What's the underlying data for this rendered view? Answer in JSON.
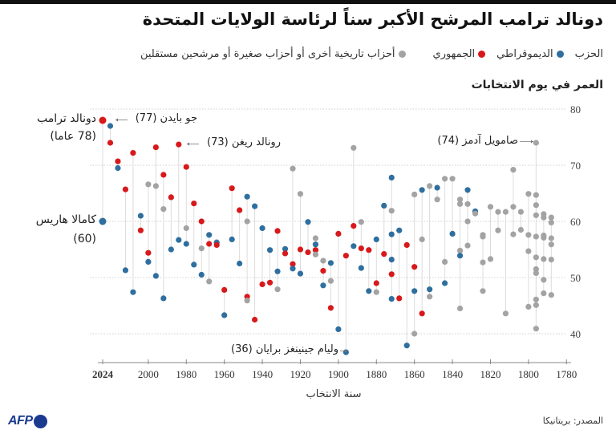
{
  "title": "دونالد ترامب المرشح الأكبر سناً لرئاسة الولايات المتحدة",
  "legend": {
    "label": "الحزب",
    "items": [
      {
        "key": "D",
        "label": "الديموقراطي"
      },
      {
        "key": "R",
        "label": "الجمهوري"
      },
      {
        "key": "O",
        "label": "أحزاب تاريخية أخرى أو أحزاب صغيرة أو مرشحين مستقلين"
      }
    ]
  },
  "source": "المصدر: بريتانيكا",
  "logo": "AFP",
  "chart_data": {
    "type": "scatter",
    "title": "دونالد ترامب المرشح الأكبر سناً لرئاسة الولايات المتحدة",
    "ylabel": "العمر في يوم الانتخابات",
    "xlabel": "سنة الانتخاب",
    "xlim": [
      2024,
      1780
    ],
    "x_reversed": true,
    "ylim": [
      35,
      80
    ],
    "xticks": [
      "2024",
      "2000",
      "1980",
      "1960",
      "1940",
      "1920",
      "1900",
      "1880",
      "1860",
      "1840",
      "1820",
      "1800",
      "1780"
    ],
    "yticks": [
      "80",
      "70",
      "60",
      "50",
      "40"
    ],
    "grid": "horizontal dotted",
    "legend_placement": "top-right",
    "colors": {
      "D": "#2f6f9f",
      "R": "#d7191c",
      "O": "#a3a3a3",
      "stem": "#dcdcdc"
    },
    "elections": [
      {
        "year": 2024,
        "c": [
          [
            78,
            "R"
          ],
          [
            60,
            "D"
          ]
        ]
      },
      {
        "year": 2020,
        "c": [
          [
            77,
            "D"
          ],
          [
            74,
            "R"
          ]
        ]
      },
      {
        "year": 2016,
        "c": [
          [
            70.7,
            "R"
          ],
          [
            69.5,
            "D"
          ]
        ]
      },
      {
        "year": 2012,
        "c": [
          [
            65.7,
            "R"
          ],
          [
            51.3,
            "D"
          ]
        ]
      },
      {
        "year": 2008,
        "c": [
          [
            72.2,
            "R"
          ],
          [
            47.4,
            "D"
          ]
        ]
      },
      {
        "year": 2004,
        "c": [
          [
            61,
            "D"
          ],
          [
            58.4,
            "R"
          ]
        ]
      },
      {
        "year": 2000,
        "c": [
          [
            66.6,
            "O"
          ],
          [
            54.4,
            "R"
          ],
          [
            52.8,
            "D"
          ]
        ]
      },
      {
        "year": 1996,
        "c": [
          [
            73.2,
            "R"
          ],
          [
            66.3,
            "O"
          ],
          [
            50.3,
            "D"
          ]
        ]
      },
      {
        "year": 1992,
        "c": [
          [
            68.3,
            "R"
          ],
          [
            62.2,
            "O"
          ],
          [
            46.3,
            "D"
          ]
        ]
      },
      {
        "year": 1988,
        "c": [
          [
            64.3,
            "R"
          ],
          [
            55,
            "D"
          ]
        ]
      },
      {
        "year": 1984,
        "c": [
          [
            73.7,
            "R"
          ],
          [
            56.7,
            "D"
          ]
        ]
      },
      {
        "year": 1980,
        "c": [
          [
            69.7,
            "R"
          ],
          [
            58.8,
            "O"
          ],
          [
            56,
            "D"
          ]
        ]
      },
      {
        "year": 1976,
        "c": [
          [
            63.2,
            "R"
          ],
          [
            52.3,
            "D"
          ]
        ]
      },
      {
        "year": 1972,
        "c": [
          [
            60,
            "R"
          ],
          [
            55.2,
            "O"
          ],
          [
            50.5,
            "D"
          ]
        ]
      },
      {
        "year": 1968,
        "c": [
          [
            57.6,
            "D"
          ],
          [
            56,
            "R"
          ],
          [
            49.3,
            "O"
          ]
        ]
      },
      {
        "year": 1964,
        "c": [
          [
            56.3,
            "O"
          ],
          [
            56.2,
            "D"
          ],
          [
            55.8,
            "R"
          ]
        ]
      },
      {
        "year": 1960,
        "c": [
          [
            47.8,
            "R"
          ],
          [
            43.3,
            "D"
          ]
        ]
      },
      {
        "year": 1956,
        "c": [
          [
            65.9,
            "R"
          ],
          [
            56.8,
            "D"
          ]
        ]
      },
      {
        "year": 1952,
        "c": [
          [
            62,
            "R"
          ],
          [
            52.5,
            "D"
          ]
        ]
      },
      {
        "year": 1948,
        "c": [
          [
            64.4,
            "D"
          ],
          [
            60,
            "O"
          ],
          [
            46.6,
            "R"
          ],
          [
            45.9,
            "O"
          ]
        ]
      },
      {
        "year": 1944,
        "c": [
          [
            62.7,
            "D"
          ],
          [
            42.5,
            "R"
          ]
        ]
      },
      {
        "year": 1940,
        "c": [
          [
            58.8,
            "D"
          ],
          [
            48.8,
            "R"
          ]
        ]
      },
      {
        "year": 1936,
        "c": [
          [
            54.9,
            "D"
          ],
          [
            49.1,
            "R"
          ]
        ]
      },
      {
        "year": 1932,
        "c": [
          [
            58.3,
            "R"
          ],
          [
            51.1,
            "D"
          ],
          [
            47.9,
            "O"
          ]
        ]
      },
      {
        "year": 1928,
        "c": [
          [
            55.1,
            "D"
          ],
          [
            54.3,
            "R"
          ]
        ]
      },
      {
        "year": 1924,
        "c": [
          [
            69.4,
            "O"
          ],
          [
            52.4,
            "R"
          ],
          [
            51.6,
            "D"
          ]
        ]
      },
      {
        "year": 1920,
        "c": [
          [
            64.9,
            "O"
          ],
          [
            55,
            "R"
          ],
          [
            50.7,
            "D"
          ]
        ]
      },
      {
        "year": 1916,
        "c": [
          [
            59.9,
            "D"
          ],
          [
            54.5,
            "R"
          ]
        ]
      },
      {
        "year": 1912,
        "c": [
          [
            57,
            "O"
          ],
          [
            55.9,
            "D"
          ],
          [
            54.9,
            "R"
          ],
          [
            54.1,
            "O"
          ]
        ]
      },
      {
        "year": 1908,
        "c": [
          [
            53,
            "O"
          ],
          [
            51.2,
            "R"
          ],
          [
            48.6,
            "D"
          ]
        ]
      },
      {
        "year": 1904,
        "c": [
          [
            52.6,
            "D"
          ],
          [
            49.4,
            "O"
          ],
          [
            44.6,
            "R"
          ]
        ]
      },
      {
        "year": 1900,
        "c": [
          [
            57.8,
            "R"
          ],
          [
            40.8,
            "D"
          ]
        ]
      },
      {
        "year": 1896,
        "c": [
          [
            53.9,
            "R"
          ],
          [
            36.7,
            "D"
          ]
        ]
      },
      {
        "year": 1892,
        "c": [
          [
            73.1,
            "O"
          ],
          [
            59.2,
            "R"
          ],
          [
            55.6,
            "D"
          ]
        ]
      },
      {
        "year": 1888,
        "c": [
          [
            59.9,
            "O"
          ],
          [
            55.2,
            "R"
          ],
          [
            51.7,
            "D"
          ]
        ]
      },
      {
        "year": 1884,
        "c": [
          [
            54.9,
            "R"
          ],
          [
            47.6,
            "D"
          ]
        ]
      },
      {
        "year": 1880,
        "c": [
          [
            56.8,
            "D"
          ],
          [
            49,
            "R"
          ],
          [
            47.4,
            "O"
          ]
        ]
      },
      {
        "year": 1876,
        "c": [
          [
            62.8,
            "D"
          ],
          [
            54.2,
            "R"
          ]
        ]
      },
      {
        "year": 1872,
        "c": [
          [
            67.8,
            "D"
          ],
          [
            61.9,
            "O"
          ],
          [
            57.7,
            "D"
          ],
          [
            53.2,
            "D"
          ],
          [
            50.6,
            "R"
          ],
          [
            46.2,
            "D"
          ]
        ]
      },
      {
        "year": 1868,
        "c": [
          [
            58.4,
            "D"
          ],
          [
            46.3,
            "R"
          ]
        ]
      },
      {
        "year": 1864,
        "c": [
          [
            55.8,
            "R"
          ],
          [
            37.9,
            "D"
          ]
        ]
      },
      {
        "year": 1860,
        "c": [
          [
            64.8,
            "O"
          ],
          [
            51.9,
            "R"
          ],
          [
            47.6,
            "D"
          ],
          [
            40,
            "O"
          ]
        ]
      },
      {
        "year": 1856,
        "c": [
          [
            65.6,
            "D"
          ],
          [
            56.8,
            "O"
          ],
          [
            43.6,
            "R"
          ]
        ]
      },
      {
        "year": 1852,
        "c": [
          [
            66.3,
            "O"
          ],
          [
            47.9,
            "D"
          ],
          [
            46.6,
            "O"
          ]
        ]
      },
      {
        "year": 1848,
        "c": [
          [
            66,
            "D"
          ],
          [
            63.9,
            "O"
          ]
        ]
      },
      {
        "year": 1844,
        "c": [
          [
            67.6,
            "O"
          ],
          [
            52.8,
            "O"
          ],
          [
            49,
            "D"
          ]
        ]
      },
      {
        "year": 1840,
        "c": [
          [
            67.6,
            "O"
          ],
          [
            57.8,
            "D"
          ]
        ]
      },
      {
        "year": 1836,
        "c": [
          [
            63.9,
            "O"
          ],
          [
            63.1,
            "O"
          ],
          [
            54.8,
            "O"
          ],
          [
            53.9,
            "D"
          ],
          [
            44.5,
            "O"
          ]
        ]
      },
      {
        "year": 1832,
        "c": [
          [
            65.6,
            "D"
          ],
          [
            63.1,
            "O"
          ],
          [
            60,
            "O"
          ],
          [
            55.7,
            "O"
          ]
        ]
      },
      {
        "year": 1828,
        "c": [
          [
            61.8,
            "D"
          ],
          [
            61.4,
            "O"
          ]
        ]
      },
      {
        "year": 1824,
        "c": [
          [
            57.6,
            "O"
          ],
          [
            57.3,
            "O"
          ],
          [
            52.7,
            "O"
          ],
          [
            47.6,
            "O"
          ]
        ]
      },
      {
        "year": 1820,
        "c": [
          [
            62.6,
            "O"
          ],
          [
            53.3,
            "O"
          ]
        ]
      },
      {
        "year": 1816,
        "c": [
          [
            61.7,
            "O"
          ],
          [
            58.4,
            "O"
          ]
        ]
      },
      {
        "year": 1812,
        "c": [
          [
            61.7,
            "O"
          ],
          [
            43.6,
            "O"
          ]
        ]
      },
      {
        "year": 1808,
        "c": [
          [
            69.2,
            "O"
          ],
          [
            62.6,
            "O"
          ],
          [
            57.7,
            "O"
          ]
        ]
      },
      {
        "year": 1804,
        "c": [
          [
            61.7,
            "O"
          ],
          [
            58.5,
            "O"
          ]
        ]
      },
      {
        "year": 1800,
        "c": [
          [
            64.9,
            "O"
          ],
          [
            57.6,
            "O"
          ],
          [
            54.7,
            "O"
          ],
          [
            44.8,
            "O"
          ]
        ]
      },
      {
        "year": 1796,
        "c": [
          [
            74,
            "O"
          ],
          [
            64.7,
            "O"
          ],
          [
            62.9,
            "O"
          ],
          [
            61.1,
            "O"
          ],
          [
            57.3,
            "O"
          ],
          [
            53.6,
            "O"
          ],
          [
            51.5,
            "O"
          ],
          [
            50.8,
            "O"
          ],
          [
            46.1,
            "O"
          ],
          [
            45.1,
            "O"
          ],
          [
            40.9,
            "O"
          ]
        ]
      },
      {
        "year": 1792,
        "c": [
          [
            61.3,
            "O"
          ],
          [
            60.7,
            "O"
          ],
          [
            57.5,
            "O"
          ],
          [
            57.1,
            "O"
          ],
          [
            53.3,
            "O"
          ],
          [
            49.6,
            "O"
          ],
          [
            47.2,
            "O"
          ]
        ]
      },
      {
        "year": 1788,
        "c": [
          [
            60.7,
            "O"
          ],
          [
            59.8,
            "O"
          ],
          [
            57,
            "O"
          ],
          [
            55.9,
            "O"
          ],
          [
            53.2,
            "O"
          ],
          [
            46.9,
            "O"
          ]
        ]
      }
    ],
    "annotations": {
      "trump_name": "دونالد ترامب",
      "trump_age": "(78 عاما)",
      "harris_name": "كامالا هاريس",
      "harris_age": "(60)",
      "biden": "جو بايدن (77)",
      "reagan": "رونالد ريغن (73)",
      "bryan": "وليام جينينغز برايان (36)",
      "adams": "صامويل آدمز (74)"
    }
  }
}
